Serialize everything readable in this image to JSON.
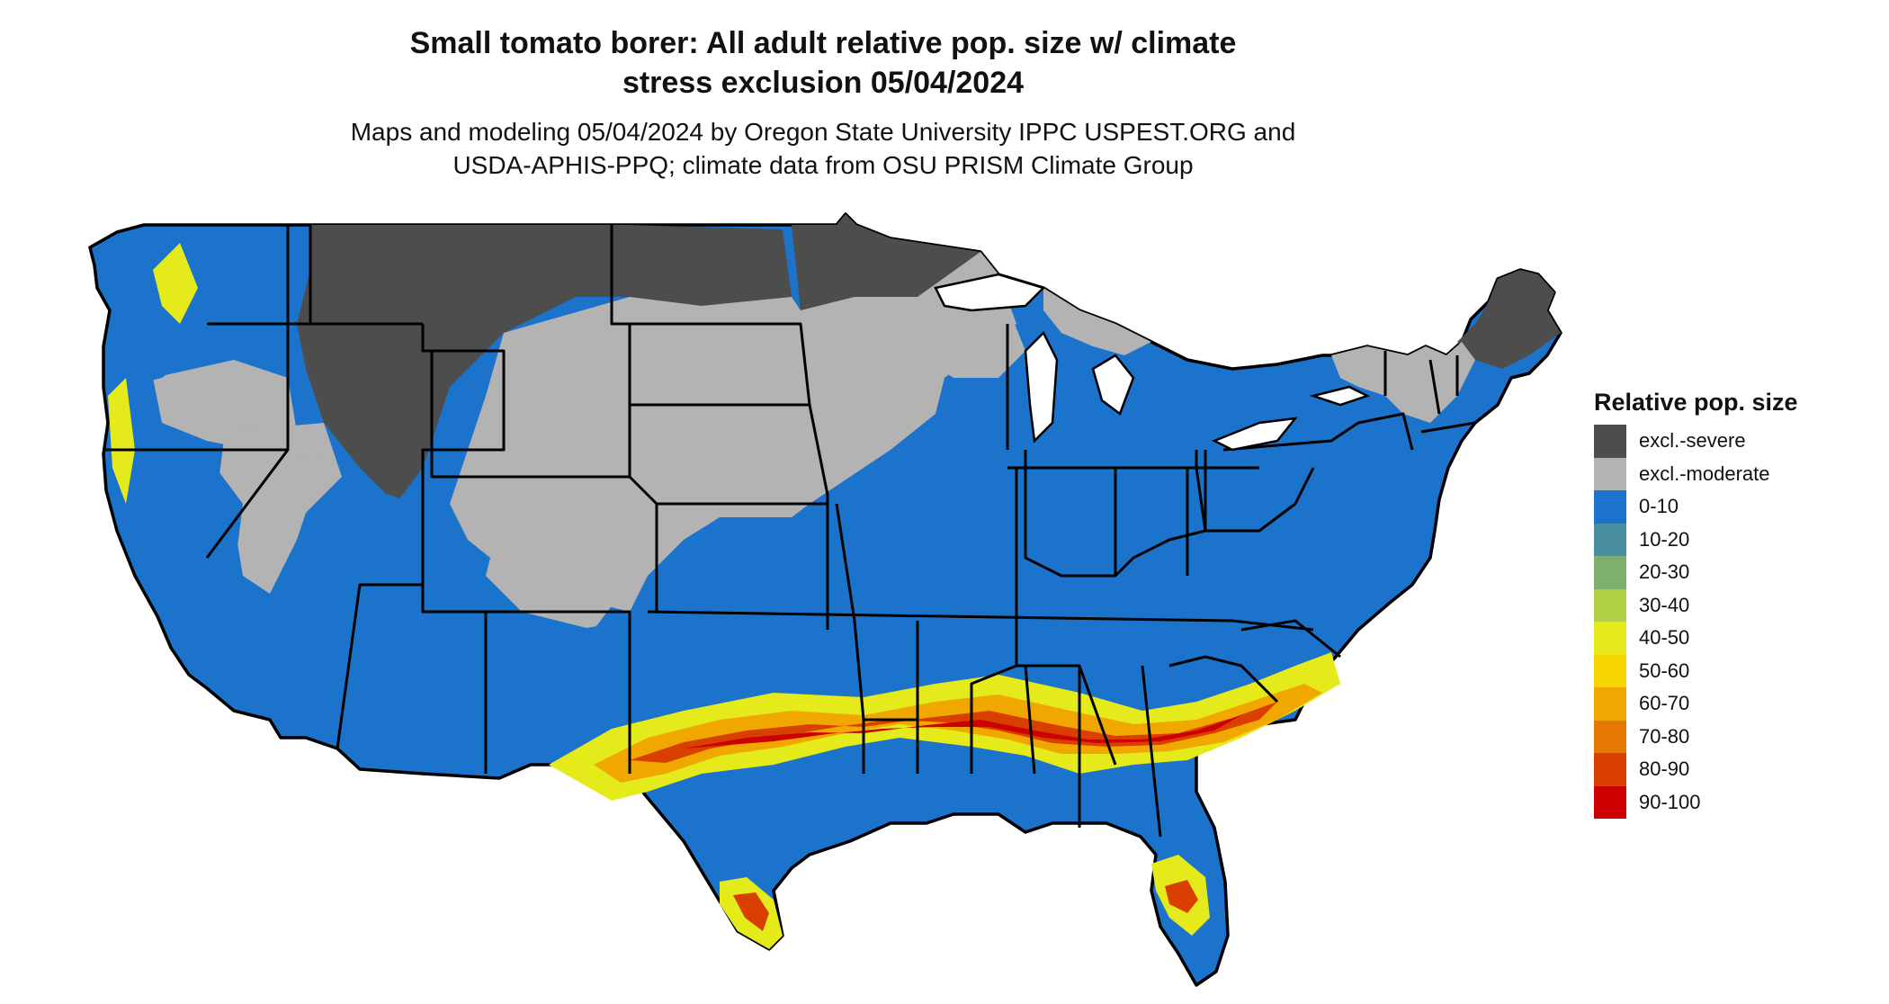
{
  "title": {
    "line1": "Small tomato borer: All adult relative pop. size w/ climate",
    "line2": "stress exclusion 05/04/2024"
  },
  "subtitle": {
    "line1": "Maps and modeling 05/04/2024 by Oregon State University IPPC USPEST.ORG and",
    "line2": "USDA-APHIS-PPQ; climate data from OSU PRISM Climate Group"
  },
  "legend": {
    "title": "Relative pop. size",
    "items": [
      {
        "label": "excl.-severe",
        "color": "#4d4d4d"
      },
      {
        "label": "excl.-moderate",
        "color": "#b3b3b3"
      },
      {
        "label": "0-10",
        "color": "#1c73cc"
      },
      {
        "label": "10-20",
        "color": "#4a8fa1"
      },
      {
        "label": "20-30",
        "color": "#7eaf6f"
      },
      {
        "label": "30-40",
        "color": "#b0cf44"
      },
      {
        "label": "40-50",
        "color": "#e5ea1a"
      },
      {
        "label": "50-60",
        "color": "#f7d500"
      },
      {
        "label": "60-70",
        "color": "#f0a800"
      },
      {
        "label": "70-80",
        "color": "#e57800"
      },
      {
        "label": "80-90",
        "color": "#d94000"
      },
      {
        "label": "90-100",
        "color": "#cc0000"
      }
    ]
  }
}
